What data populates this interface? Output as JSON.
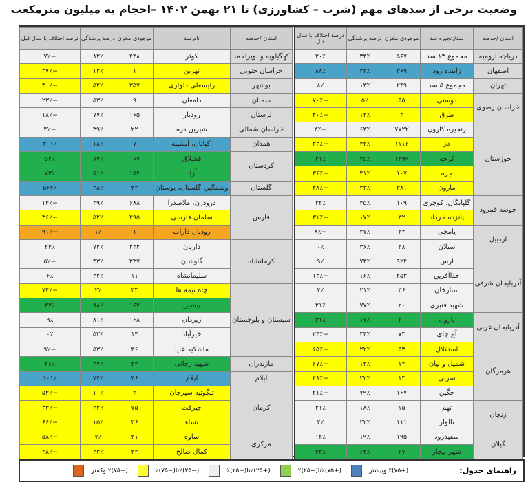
{
  "title": "وضعیت برخی از سدهای مهم (شرب – کشاورزی) تا ۲۱ بهمن ۱۴۰۲ –احجام به میلیون مترمکعب",
  "colors": {
    "w": "#f1f1f1",
    "y": "#ffff00",
    "b": "#4aa3c8",
    "g": "#22b04e",
    "o": "#f5a51f"
  },
  "right_table": {
    "headers": [
      "استان /حوضه",
      "سد/زنجیره سد",
      "موجودی مخزن",
      "درصد پرشدگی",
      "درصد اختلاف با سال قبل"
    ],
    "rows": [
      {
        "province": "دریاچه ارومیه",
        "span": 1,
        "dam": "مجموع ۱۳ سد",
        "volume": "۵۶۷",
        "fill": "۳۴٪",
        "change": "۲۰٪",
        "level": "w"
      },
      {
        "province": "اصفهان",
        "span": 1,
        "dam": "زاینده رود",
        "volume": "۳۶۹",
        "fill": "۲۲٪",
        "change": "۸۸٪",
        "level": "b"
      },
      {
        "province": "تهران",
        "span": 1,
        "dam": "مجموع ۵ سد",
        "volume": "۲۴۹",
        "fill": "۱۳٪",
        "change": "۸٪",
        "level": "w"
      },
      {
        "province": "خراسان رضوی",
        "span": 2,
        "dam": "دوستی",
        "volume": "۵۵",
        "fill": "۵٪",
        "change": "−۷۰٪",
        "level": "y"
      },
      {
        "dam": "طرق",
        "volume": "۴",
        "fill": "۱۲٪",
        "change": "−۴۰٪",
        "level": "y"
      },
      {
        "province": "خوزستان",
        "span": 5,
        "dam": "زنجیره کارون",
        "volume": "۷۷۲۲",
        "fill": "۶۳٪",
        "change": "−۳٪",
        "level": "w"
      },
      {
        "dam": "دز",
        "volume": "۱۱۱۶",
        "fill": "۴۲٪",
        "change": "−۳۳٪",
        "level": "y"
      },
      {
        "dam": "کرخه",
        "volume": "۱۲۹۹",
        "fill": "۲۵٪",
        "change": "۳۱٪",
        "level": "g"
      },
      {
        "dam": "جره",
        "volume": "۱۰۷",
        "fill": "۴۱٪",
        "change": "−۳۶٪",
        "level": "y"
      },
      {
        "dam": "مارون",
        "volume": "۳۸۱",
        "fill": "۳۳٪",
        "change": "−۴۸٪",
        "level": "y"
      },
      {
        "province": "حوضه قمرود",
        "span": 2,
        "dam": "گلپایگان، کوچری",
        "volume": "۱۰۹",
        "fill": "۴۵٪",
        "change": "۲۲٪",
        "level": "w"
      },
      {
        "dam": "پانزده خرداد",
        "volume": "۳۲",
        "fill": "۱۷٪",
        "change": "−۳۱٪",
        "level": "y"
      },
      {
        "province": "اردبیل",
        "span": 2,
        "dam": "یامچی",
        "volume": "۲۲",
        "fill": "۲۷٪",
        "change": "−۸٪",
        "level": "w"
      },
      {
        "dam": "سبلان",
        "volume": "۲۸",
        "fill": "۳۶٪",
        "change": "۰٪",
        "level": "w"
      },
      {
        "province": "آذربایجان شرقی",
        "span": 4,
        "dam": "ارس",
        "volume": "۹۲۴",
        "fill": "۷۴٪",
        "change": "۹٪",
        "level": "w"
      },
      {
        "dam": "خداآفرین",
        "volume": "۲۵۳",
        "fill": "۱۶٪",
        "change": "−۱۳٪",
        "level": "w"
      },
      {
        "dam": "ستارخان",
        "volume": "۳۶",
        "fill": "۲۱٪",
        "change": "۴٪",
        "level": "w"
      },
      {
        "dam": "شهید قنبری",
        "volume": "۲۰",
        "fill": "۷۷٪",
        "change": "۲۱٪",
        "level": "w"
      },
      {
        "province": "آذربایجان غربی",
        "span": 2,
        "dam": "بارون",
        "volume": "۲۰",
        "fill": "۱۷٪",
        "change": "۳۱٪",
        "level": "g"
      },
      {
        "dam": "آغ چای",
        "volume": "۷۳",
        "fill": "۳۴٪",
        "change": "−۲۴٪",
        "level": "w"
      },
      {
        "province": "هرمزگان",
        "span": 4,
        "dam": "استقلال",
        "volume": "۵۳",
        "fill": "۲۲٪",
        "change": "−۶۵٪",
        "level": "y"
      },
      {
        "dam": "شمیل و نیان",
        "volume": "۱۴",
        "fill": "۱۴٪",
        "change": "−۶۷٪",
        "level": "y"
      },
      {
        "dam": "سرنی",
        "volume": "۱۳",
        "fill": "۲۲٪",
        "change": "−۴۸٪",
        "level": "y"
      },
      {
        "dam": "جگین",
        "volume": "۱۶۷",
        "fill": "۷۹٪",
        "change": "−۲۱٪",
        "level": "w"
      },
      {
        "province": "زنجان",
        "span": 2,
        "dam": "تهم",
        "volume": "۱۵",
        "fill": "۱۸٪",
        "change": "۲۱٪",
        "level": "w"
      },
      {
        "dam": "تالوار",
        "volume": "۱۱۱",
        "fill": "۲۲٪",
        "change": "۲٪",
        "level": "w"
      },
      {
        "province": "گیلان",
        "span": 2,
        "dam": "سفیدرود",
        "volume": "۱۹۵",
        "fill": "۱۹٪",
        "change": "۱۲٪",
        "level": "w"
      },
      {
        "dam": "شهر بیجار",
        "volume": "۶۷",
        "fill": "۶۴٪",
        "change": "۴۳٪",
        "level": "g"
      }
    ]
  },
  "left_table": {
    "headers": [
      "استان /حوضه",
      "نام سد",
      "موجودی مخزن",
      "درصد پرشدگی",
      "درصد اختلاف با سال قبل"
    ],
    "rows": [
      {
        "province": "کهگیلویه و بویراحمد",
        "span": 1,
        "dam": "کوثر",
        "volume": "۴۴۸",
        "fill": "۸۲٪",
        "change": "−۷٪",
        "level": "w"
      },
      {
        "province": "خراسان جنوبی",
        "span": 1,
        "dam": "نهرین",
        "volume": "۱",
        "fill": "۱۳٪",
        "change": "−۳۷٪",
        "level": "y"
      },
      {
        "province": "بوشهر",
        "span": 1,
        "dam": "رئیسعلی دلواری",
        "volume": "۳۵۷",
        "fill": "۵۲٪",
        "change": "−۳۰٪",
        "level": "y"
      },
      {
        "province": "سمنان",
        "span": 1,
        "dam": "دامغان",
        "volume": "۹",
        "fill": "۵۳٪",
        "change": "−۲۳٪",
        "level": "w"
      },
      {
        "province": "لرستان",
        "span": 1,
        "dam": "رودبار",
        "volume": "۱۶۵",
        "fill": "۷۷٪",
        "change": "−۱۸٪",
        "level": "w"
      },
      {
        "province": "خراسان شمالی",
        "span": 1,
        "dam": "شیرین دره",
        "volume": "۲۲",
        "fill": "۳۹٪",
        "change": "−۴٪",
        "level": "w"
      },
      {
        "province": "همدان",
        "span": 1,
        "dam": "اکباتان، آبشینه",
        "volume": "۷",
        "fill": "۱۸٪",
        "change": "۳۰۱٪",
        "level": "b"
      },
      {
        "province": "کردستان",
        "span": 2,
        "dam": "قشلاق",
        "volume": "۱۶۷",
        "fill": "۷۷٪",
        "change": "۵۲٪",
        "level": "g"
      },
      {
        "dam": "آزاد",
        "volume": "۱۵۴",
        "fill": "۵۱٪",
        "change": "۷۳٪",
        "level": "g"
      },
      {
        "province": "گلستان",
        "span": 1,
        "dam": "وشمگیر، گلستان، بوستان",
        "volume": "۴۲",
        "fill": "۳۸٪",
        "change": "۵۶۷٪",
        "level": "b"
      },
      {
        "province": "فارس",
        "span": 3,
        "dam": "درودزن، ملاصدرا",
        "volume": "۶۸۸",
        "fill": "۴۹٪",
        "change": "−۱۴٪",
        "level": "w"
      },
      {
        "dam": "سلمان فارسی",
        "volume": "۴۹۵",
        "fill": "۵۲٪",
        "change": "−۳۶٪",
        "level": "y"
      },
      {
        "dam": "رودبال داراب",
        "volume": "۱",
        "fill": "۱٪",
        "change": "−۹۱٪",
        "level": "o"
      },
      {
        "province": "کرمانشاه",
        "span": 3,
        "dam": "داریان",
        "volume": "۲۴۲",
        "fill": "۷۲٪",
        "change": "۲۴٪",
        "level": "w"
      },
      {
        "dam": "گاوشان",
        "volume": "۲۳۷",
        "fill": "۴۳٪",
        "change": "−۵٪",
        "level": "w"
      },
      {
        "dam": "سلیمانشاه",
        "volume": "۱۱",
        "fill": "۲۲٪",
        "change": "۶٪",
        "level": "w"
      },
      {
        "province": "سیستان و بلوچستان",
        "span": 5,
        "dam": "چاه نیمه ها",
        "volume": "۳۳",
        "fill": "۲٪",
        "change": "−۷۴٪",
        "level": "y"
      },
      {
        "dam": "پیشین",
        "volume": "۱۶۴",
        "fill": "۹۸٪",
        "change": "۳۷٪",
        "level": "g"
      },
      {
        "dam": "زیردان",
        "volume": "۱۶۸",
        "fill": "۸۱٪",
        "change": "۹٪",
        "level": "w"
      },
      {
        "dam": "خیرآباد",
        "volume": "۱۴",
        "fill": "۵۳٪",
        "change": "۰٪",
        "level": "w"
      },
      {
        "dam": "ماشکید علیا",
        "volume": "۳۶",
        "fill": "۵۳٪",
        "change": "−۹٪",
        "level": "w"
      },
      {
        "province": "مازندران",
        "span": 1,
        "dam": "شهید رجائی",
        "volume": "۴۴",
        "fill": "۲۷٪",
        "change": "۲۶٪",
        "level": "g"
      },
      {
        "province": "ایلام",
        "span": 1,
        "dam": "ایلام",
        "volume": "۴۶",
        "fill": "۷۴٪",
        "change": "۱۰۱٪",
        "level": "b"
      },
      {
        "province": "کرمان",
        "span": 3,
        "dam": "تنگوئیه سیرجان",
        "volume": "۴",
        "fill": "۱۰٪",
        "change": "−۵۴٪",
        "level": "y"
      },
      {
        "dam": "جیرفت",
        "volume": "۷۵",
        "fill": "۲۲٪",
        "change": "−۳۳٪",
        "level": "y"
      },
      {
        "dam": "نساء",
        "volume": "۳۶",
        "fill": "۱۵٪",
        "change": "−۶۶٪",
        "level": "y"
      },
      {
        "province": "مرکزی",
        "span": 2,
        "dam": "ساوه",
        "volume": "۲۱",
        "fill": "۷٪",
        "change": "−۵۸٪",
        "level": "y"
      },
      {
        "dam": "کمال صالح",
        "volume": "۲۲",
        "fill": "۲۳٪",
        "change": "−۲۸٪",
        "level": "y"
      }
    ]
  },
  "legend": {
    "title": "راهنمای جدول:",
    "items": [
      {
        "label": "(+۷۵)٪ وبیشتر",
        "color": "#4f81bd"
      },
      {
        "label": "(+۷۵)٪تا(+۲۵)٪",
        "color": "#8fd14f"
      },
      {
        "label": "(+۲۵)٪تا(−۲۵)٪",
        "color": "#eeeeee"
      },
      {
        "label": "(−۲۵)٪تا(−۷۵)٪",
        "color": "#ffff33"
      },
      {
        "label": "(−۷۵)٪ وکمتر",
        "color": "#d9661f"
      }
    ]
  }
}
